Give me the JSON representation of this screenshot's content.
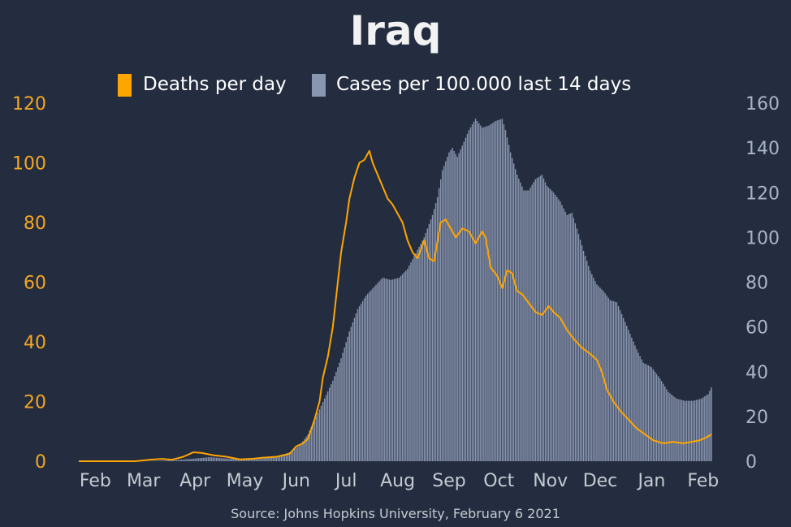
{
  "chart_data": {
    "type": "bar+line",
    "title": "Iraq",
    "source": "Source: Johns Hopkins University, February 6 2021",
    "legend": [
      {
        "label": "Deaths per day",
        "color": "#ffa500",
        "kind": "line"
      },
      {
        "label": "Cases per 100.000 last 14 days",
        "color": "#8a96b0",
        "kind": "bar"
      }
    ],
    "colors": {
      "background": "#232d3f",
      "line": "#ffa500",
      "bars": "#8a96b0",
      "left_axis": "#f5a623",
      "right_axis": "#aab4c8",
      "x_axis": "#c5cad3"
    },
    "x_start": "2020-01-22",
    "x_end": "2021-02-06",
    "x_tick_labels": [
      "Feb",
      "Mar",
      "Apr",
      "May",
      "Jun",
      "Jul",
      "Aug",
      "Sep",
      "Oct",
      "Nov",
      "Dec",
      "Jan",
      "Feb"
    ],
    "x_tick_dates": [
      "2020-02-01",
      "2020-03-01",
      "2020-04-01",
      "2020-05-01",
      "2020-06-01",
      "2020-07-01",
      "2020-08-01",
      "2020-09-01",
      "2020-10-01",
      "2020-11-01",
      "2020-12-01",
      "2021-01-01",
      "2021-02-01"
    ],
    "y_left": {
      "label": "Deaths per day",
      "lim": [
        0,
        120
      ],
      "ticks": [
        0,
        20,
        40,
        60,
        80,
        100,
        120
      ]
    },
    "y_right": {
      "label": "Cases per 100.000 last 14 days",
      "lim": [
        0,
        160
      ],
      "ticks": [
        0,
        20,
        40,
        60,
        80,
        100,
        120,
        140,
        160
      ]
    },
    "series": [
      {
        "name": "Deaths per day",
        "axis": "left",
        "points": [
          [
            "2020-01-22",
            0
          ],
          [
            "2020-02-25",
            0
          ],
          [
            "2020-03-05",
            0.5
          ],
          [
            "2020-03-12",
            0.8
          ],
          [
            "2020-03-18",
            0.5
          ],
          [
            "2020-03-25",
            1.5
          ],
          [
            "2020-03-31",
            3
          ],
          [
            "2020-04-05",
            2.8
          ],
          [
            "2020-04-12",
            2
          ],
          [
            "2020-04-20",
            1.5
          ],
          [
            "2020-04-28",
            0.6
          ],
          [
            "2020-05-05",
            0.8
          ],
          [
            "2020-05-12",
            1.2
          ],
          [
            "2020-05-20",
            1.5
          ],
          [
            "2020-05-28",
            2.5
          ],
          [
            "2020-06-01",
            5
          ],
          [
            "2020-06-05",
            6
          ],
          [
            "2020-06-08",
            7.5
          ],
          [
            "2020-06-12",
            14
          ],
          [
            "2020-06-15",
            20
          ],
          [
            "2020-06-17",
            28
          ],
          [
            "2020-06-20",
            35
          ],
          [
            "2020-06-23",
            45
          ],
          [
            "2020-06-25",
            55
          ],
          [
            "2020-06-28",
            70
          ],
          [
            "2020-07-01",
            80
          ],
          [
            "2020-07-03",
            88
          ],
          [
            "2020-07-06",
            95
          ],
          [
            "2020-07-09",
            100
          ],
          [
            "2020-07-12",
            101
          ],
          [
            "2020-07-15",
            104
          ],
          [
            "2020-07-17",
            100
          ],
          [
            "2020-07-20",
            96
          ],
          [
            "2020-07-23",
            92
          ],
          [
            "2020-07-26",
            88
          ],
          [
            "2020-07-29",
            86
          ],
          [
            "2020-08-01",
            83
          ],
          [
            "2020-08-04",
            80
          ],
          [
            "2020-08-07",
            74
          ],
          [
            "2020-08-10",
            70
          ],
          [
            "2020-08-13",
            68
          ],
          [
            "2020-08-17",
            74
          ],
          [
            "2020-08-20",
            68
          ],
          [
            "2020-08-23",
            67
          ],
          [
            "2020-08-27",
            80
          ],
          [
            "2020-08-30",
            81
          ],
          [
            "2020-09-02",
            78
          ],
          [
            "2020-09-05",
            75
          ],
          [
            "2020-09-09",
            78
          ],
          [
            "2020-09-13",
            77
          ],
          [
            "2020-09-17",
            73
          ],
          [
            "2020-09-21",
            77
          ],
          [
            "2020-09-23",
            75
          ],
          [
            "2020-09-26",
            65
          ],
          [
            "2020-09-30",
            62
          ],
          [
            "2020-10-03",
            58
          ],
          [
            "2020-10-06",
            64
          ],
          [
            "2020-10-09",
            63
          ],
          [
            "2020-10-12",
            57
          ],
          [
            "2020-10-15",
            56
          ],
          [
            "2020-10-19",
            53
          ],
          [
            "2020-10-23",
            50
          ],
          [
            "2020-10-27",
            49
          ],
          [
            "2020-10-31",
            52
          ],
          [
            "2020-11-03",
            50
          ],
          [
            "2020-11-07",
            48
          ],
          [
            "2020-11-11",
            44
          ],
          [
            "2020-11-15",
            41
          ],
          [
            "2020-11-20",
            38
          ],
          [
            "2020-11-25",
            36
          ],
          [
            "2020-11-29",
            34
          ],
          [
            "2020-12-02",
            30
          ],
          [
            "2020-12-05",
            24
          ],
          [
            "2020-12-09",
            20
          ],
          [
            "2020-12-13",
            17
          ],
          [
            "2020-12-18",
            14
          ],
          [
            "2020-12-23",
            11
          ],
          [
            "2020-12-28",
            9
          ],
          [
            "2021-01-02",
            7
          ],
          [
            "2021-01-08",
            6
          ],
          [
            "2021-01-14",
            6.5
          ],
          [
            "2021-01-20",
            6
          ],
          [
            "2021-01-25",
            6.5
          ],
          [
            "2021-01-30",
            7
          ],
          [
            "2021-02-03",
            8
          ],
          [
            "2021-02-06",
            9
          ]
        ]
      },
      {
        "name": "Cases per 100.000 last 14 days",
        "axis": "right",
        "points": [
          [
            "2020-01-22",
            0
          ],
          [
            "2020-03-01",
            0
          ],
          [
            "2020-03-20",
            0.5
          ],
          [
            "2020-04-01",
            1.2
          ],
          [
            "2020-04-10",
            1.8
          ],
          [
            "2020-04-20",
            1.2
          ],
          [
            "2020-05-01",
            0.8
          ],
          [
            "2020-05-10",
            1
          ],
          [
            "2020-05-20",
            2
          ],
          [
            "2020-05-28",
            4
          ],
          [
            "2020-06-03",
            7
          ],
          [
            "2020-06-08",
            12
          ],
          [
            "2020-06-13",
            20
          ],
          [
            "2020-06-18",
            28
          ],
          [
            "2020-06-23",
            36
          ],
          [
            "2020-06-28",
            46
          ],
          [
            "2020-07-03",
            58
          ],
          [
            "2020-07-08",
            68
          ],
          [
            "2020-07-13",
            74
          ],
          [
            "2020-07-18",
            78
          ],
          [
            "2020-07-23",
            82
          ],
          [
            "2020-07-28",
            81
          ],
          [
            "2020-08-02",
            82
          ],
          [
            "2020-08-07",
            86
          ],
          [
            "2020-08-12",
            93
          ],
          [
            "2020-08-17",
            100
          ],
          [
            "2020-08-22",
            110
          ],
          [
            "2020-08-25",
            118
          ],
          [
            "2020-08-28",
            130
          ],
          [
            "2020-09-01",
            138
          ],
          [
            "2020-09-03",
            140
          ],
          [
            "2020-09-06",
            136
          ],
          [
            "2020-09-09",
            141
          ],
          [
            "2020-09-13",
            148
          ],
          [
            "2020-09-17",
            153
          ],
          [
            "2020-09-21",
            149
          ],
          [
            "2020-09-25",
            150
          ],
          [
            "2020-09-29",
            152
          ],
          [
            "2020-10-03",
            153
          ],
          [
            "2020-10-05",
            148
          ],
          [
            "2020-10-08",
            138
          ],
          [
            "2020-10-12",
            128
          ],
          [
            "2020-10-16",
            121
          ],
          [
            "2020-10-19",
            121
          ],
          [
            "2020-10-23",
            126
          ],
          [
            "2020-10-27",
            128
          ],
          [
            "2020-10-30",
            123
          ],
          [
            "2020-11-03",
            120
          ],
          [
            "2020-11-07",
            116
          ],
          [
            "2020-11-11",
            110
          ],
          [
            "2020-11-14",
            111
          ],
          [
            "2020-11-17",
            104
          ],
          [
            "2020-11-21",
            94
          ],
          [
            "2020-11-25",
            85
          ],
          [
            "2020-11-29",
            79
          ],
          [
            "2020-12-03",
            76
          ],
          [
            "2020-12-07",
            72
          ],
          [
            "2020-12-11",
            71
          ],
          [
            "2020-12-15",
            64
          ],
          [
            "2020-12-19",
            57
          ],
          [
            "2020-12-23",
            50
          ],
          [
            "2020-12-27",
            44
          ],
          [
            "2021-01-01",
            42
          ],
          [
            "2021-01-06",
            37
          ],
          [
            "2021-01-11",
            31
          ],
          [
            "2021-01-16",
            28
          ],
          [
            "2021-01-21",
            27
          ],
          [
            "2021-01-26",
            27
          ],
          [
            "2021-01-31",
            28
          ],
          [
            "2021-02-04",
            30
          ],
          [
            "2021-02-06",
            33
          ]
        ]
      }
    ]
  }
}
